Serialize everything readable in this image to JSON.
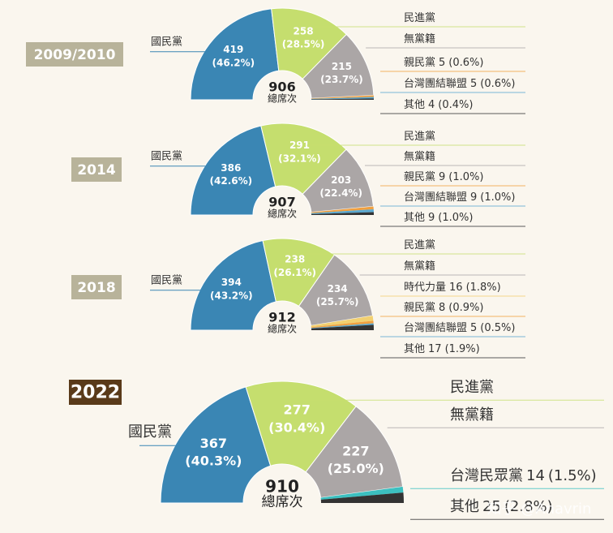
{
  "chart_data": [
    {
      "type": "pie",
      "title": "2009/2010",
      "total": 906,
      "total_label": "總席次",
      "categories": [
        "國民黨",
        "民進黨",
        "無黨籍",
        "親民黨",
        "台灣團結聯盟",
        "其他"
      ],
      "values": [
        419,
        258,
        215,
        5,
        5,
        4
      ],
      "percents": [
        46.2,
        28.5,
        23.7,
        0.6,
        0.6,
        0.4
      ],
      "percent_labels": [
        "(46.2%)",
        "(28.5%)",
        "(23.7%)",
        "(0.6%)",
        "(0.6%)",
        "(0.4%)"
      ],
      "colors": [
        "#3a86b4",
        "#c5de6e",
        "#aba6a6",
        "#f0a040",
        "#5aa8d0",
        "#333333"
      ]
    },
    {
      "type": "pie",
      "title": "2014",
      "total": 907,
      "total_label": "總席次",
      "categories": [
        "國民黨",
        "民進黨",
        "無黨籍",
        "親民黨",
        "台灣團結聯盟",
        "其他"
      ],
      "values": [
        386,
        291,
        203,
        9,
        9,
        9
      ],
      "percents": [
        42.6,
        32.1,
        22.4,
        1.0,
        1.0,
        1.0
      ],
      "percent_labels": [
        "(42.6%)",
        "(32.1%)",
        "(22.4%)",
        "(1.0%)",
        "(1.0%)",
        "(1.0%)"
      ],
      "colors": [
        "#3a86b4",
        "#c5de6e",
        "#aba6a6",
        "#f0a040",
        "#5aa8d0",
        "#333333"
      ]
    },
    {
      "type": "pie",
      "title": "2018",
      "total": 912,
      "total_label": "總席次",
      "categories": [
        "國民黨",
        "民進黨",
        "無黨籍",
        "時代力量",
        "親民黨",
        "台灣團結聯盟",
        "其他"
      ],
      "values": [
        394,
        238,
        234,
        16,
        8,
        5,
        17
      ],
      "percents": [
        43.2,
        26.1,
        25.7,
        1.8,
        0.9,
        0.5,
        1.9
      ],
      "percent_labels": [
        "(43.2%)",
        "(26.1%)",
        "(25.7%)",
        "(1.8%)",
        "(0.9%)",
        "(0.5%)",
        "(1.9%)"
      ],
      "colors": [
        "#3a86b4",
        "#c5de6e",
        "#aba6a6",
        "#f2d070",
        "#f0a040",
        "#5aa8d0",
        "#333333"
      ]
    },
    {
      "type": "pie",
      "title": "2022",
      "total": 910,
      "total_label": "總席次",
      "categories": [
        "國民黨",
        "民進黨",
        "無黨籍",
        "台灣民眾黨",
        "其他"
      ],
      "values": [
        367,
        277,
        227,
        14,
        25
      ],
      "percents": [
        40.3,
        30.4,
        25.0,
        1.5,
        2.8
      ],
      "percent_labels": [
        "(40.3%)",
        "(30.4%)",
        "(25.0%)",
        "(1.5%)",
        "(2.8%)"
      ],
      "colors": [
        "#3a86b4",
        "#c5de6e",
        "#aba6a6",
        "#3cc0c0",
        "#333333"
      ]
    }
  ],
  "watermark": "知乎 @Anavrin"
}
